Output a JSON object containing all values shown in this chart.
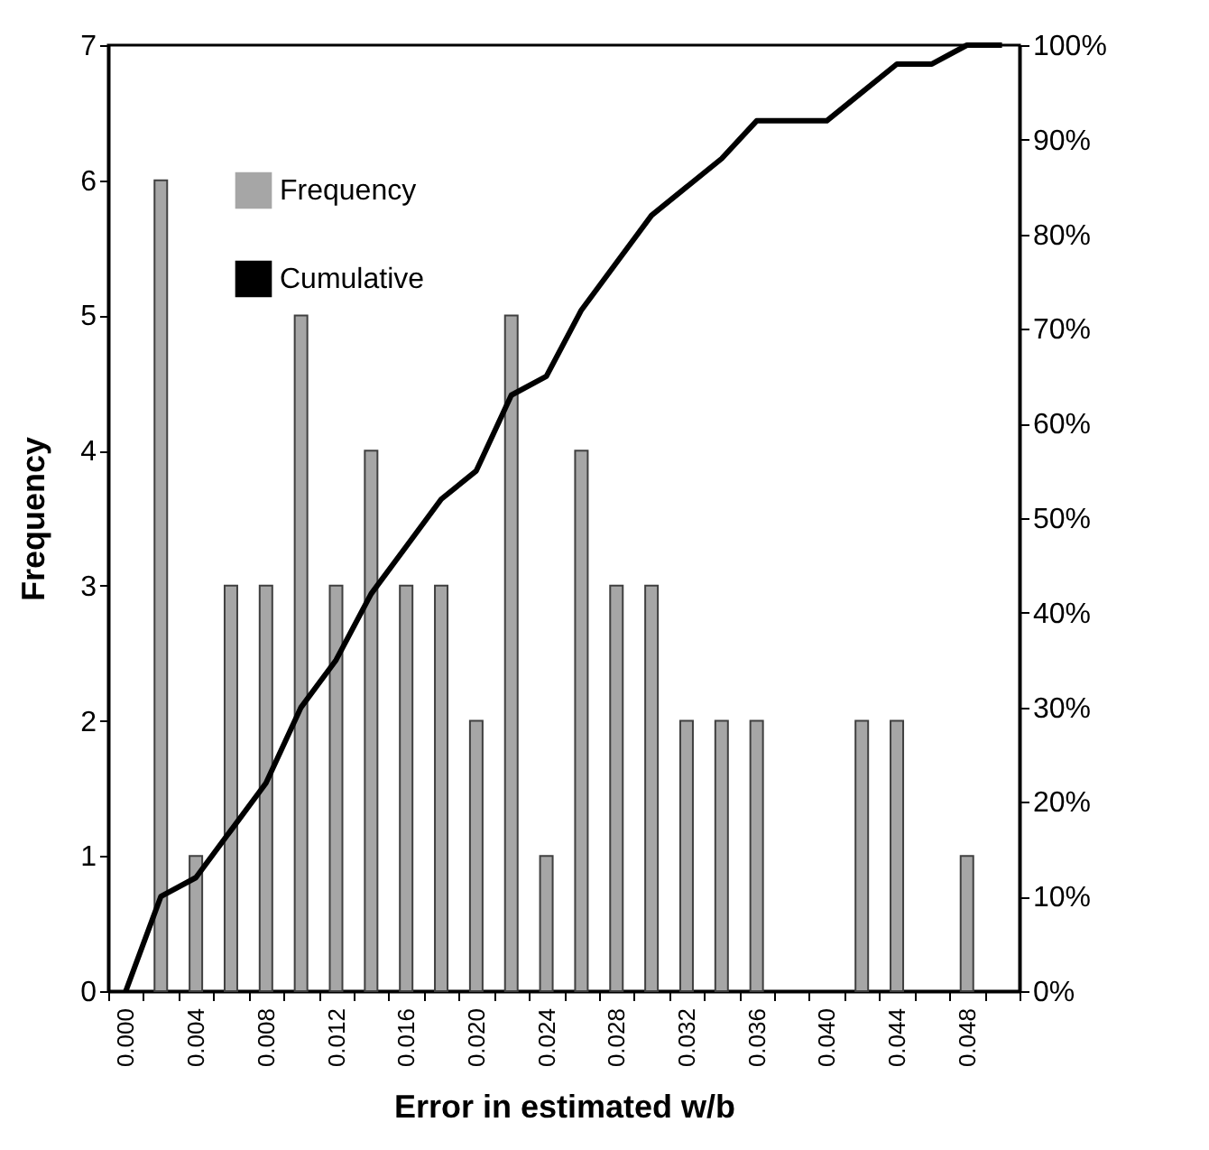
{
  "chart_data": {
    "type": "bar",
    "xlabel": "Error in estimated w/b",
    "ylabel": "Frequency",
    "categories": [
      "0.000",
      null,
      "0.004",
      null,
      "0.008",
      null,
      "0.012",
      null,
      "0.016",
      null,
      "0.020",
      null,
      "0.024",
      null,
      "0.028",
      null,
      "0.032",
      null,
      "0.036",
      null,
      "0.040",
      null,
      "0.044",
      null,
      "0.048",
      null
    ],
    "series": [
      {
        "name": "Frequency",
        "color": "#a6a6a6",
        "values": [
          0,
          6,
          1,
          3,
          3,
          5,
          3,
          4,
          3,
          3,
          2,
          5,
          1,
          4,
          3,
          3,
          2,
          2,
          2,
          0,
          0,
          2,
          2,
          0,
          1,
          0
        ]
      },
      {
        "name": "Cumulative",
        "type": "line",
        "axis": "y2",
        "color": "#000000",
        "values": [
          0,
          10,
          12,
          17,
          22,
          30,
          35,
          42,
          47,
          52,
          55,
          63,
          65,
          72,
          77,
          82,
          85,
          88,
          92,
          92,
          92,
          95,
          98,
          98,
          100,
          100
        ]
      }
    ],
    "ylim": [
      0,
      7
    ],
    "yticks": [
      0,
      1,
      2,
      3,
      4,
      5,
      6,
      7
    ],
    "y2lim": [
      0,
      100
    ],
    "y2ticks": [
      {
        "value": 0,
        "label": "0%"
      },
      {
        "value": 10,
        "label": "10%"
      },
      {
        "value": 20,
        "label": "20%"
      },
      {
        "value": 30,
        "label": "30%"
      },
      {
        "value": 40,
        "label": "40%"
      },
      {
        "value": 50,
        "label": "50%"
      },
      {
        "value": 60,
        "label": "60%"
      },
      {
        "value": 70,
        "label": "70%"
      },
      {
        "value": 80,
        "label": "80%"
      },
      {
        "value": 90,
        "label": "90%"
      },
      {
        "value": 100,
        "label": "100%"
      }
    ],
    "legend": "top left",
    "grid": false
  }
}
